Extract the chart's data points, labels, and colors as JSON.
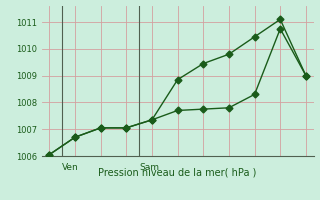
{
  "xlabel": "Pression niveau de la mer( hPa )",
  "bg_color": "#cceedd",
  "grid_color": "#d4a0a0",
  "line_color": "#1a5c1a",
  "ylim": [
    1006.0,
    1011.6
  ],
  "yticks": [
    1006,
    1007,
    1008,
    1009,
    1010,
    1011
  ],
  "day_labels": [
    "Ven",
    "Sam"
  ],
  "vline_x": [
    0.5,
    3.5
  ],
  "line1_x": [
    0,
    1,
    2,
    3,
    4,
    5,
    6,
    7,
    8,
    9,
    10
  ],
  "line1_y": [
    1006.05,
    1006.7,
    1007.05,
    1007.05,
    1007.35,
    1008.85,
    1009.45,
    1009.8,
    1010.45,
    1011.1,
    1009.0
  ],
  "line2_x": [
    0,
    1,
    2,
    3,
    4,
    5,
    6,
    7,
    8,
    9,
    10
  ],
  "line2_y": [
    1006.05,
    1006.7,
    1007.05,
    1007.05,
    1007.35,
    1007.7,
    1007.75,
    1007.8,
    1008.3,
    1010.75,
    1009.0
  ],
  "marker_size": 3.5,
  "linewidth": 1.0
}
